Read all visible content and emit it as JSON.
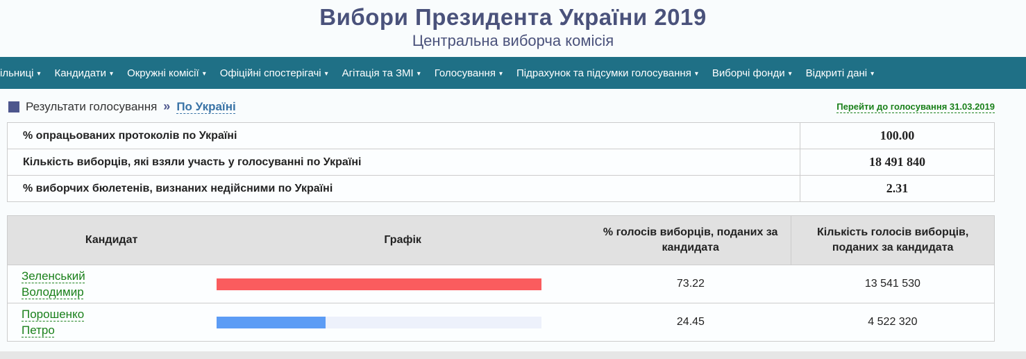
{
  "colors": {
    "teal": "#1f7086",
    "titleText": "#4a527b",
    "slate": "#4d568d",
    "blueLink": "#3973a6",
    "green": "#1a801a",
    "barTrack": "#edf1fb",
    "pageBg": "#f9fcfd",
    "rowBg": "#fcfeff",
    "border": "#cccccc",
    "thBg": "#e1e1e1",
    "footer": "#e6e6e6"
  },
  "header": {
    "title": "Вибори Президента України 2019",
    "subtitle": "Центральна виборча комісія"
  },
  "nav": {
    "caret": "▾",
    "items": [
      "ільниці",
      "Кандидати",
      "Окружні комісії",
      "Офіційні спостерігачі",
      "Агітація та ЗМІ",
      "Голосування",
      "Підрахунок та підсумки голосування",
      "Виборчі фонди",
      "Відкриті дані"
    ]
  },
  "breadcrumb": {
    "section": "Результати голосування",
    "separator": "»",
    "current": "По Україні"
  },
  "go_to_vote": {
    "label": "Перейти до голосування 31.03.2019"
  },
  "summary": {
    "rows": [
      {
        "label": "% опрацьованих протоколів по Україні",
        "value": "100.00"
      },
      {
        "label": "Кількість виборців, які взяли участь у голосуванні по Україні",
        "value": "18 491 840"
      },
      {
        "label": "% виборчих бюлетенів, визнаних недійсними по Україні",
        "value": "2.31"
      }
    ]
  },
  "results": {
    "columns": [
      "Кандидат",
      "Графік",
      "% голосів виборців, поданих за кандидата",
      "Кількість голосів виборців, поданих за кандидата"
    ],
    "candidates": [
      {
        "name": "Зеленський Володимир",
        "percent": "73.22",
        "votes": "13 541 530",
        "bar": {
          "fraction": 100,
          "color": "#fa5c5e"
        }
      },
      {
        "name": "Порошенко Петро",
        "percent": "24.45",
        "votes": "4 522 320",
        "bar": {
          "fraction": 33.4,
          "color": "#5c9cf5"
        }
      }
    ]
  }
}
